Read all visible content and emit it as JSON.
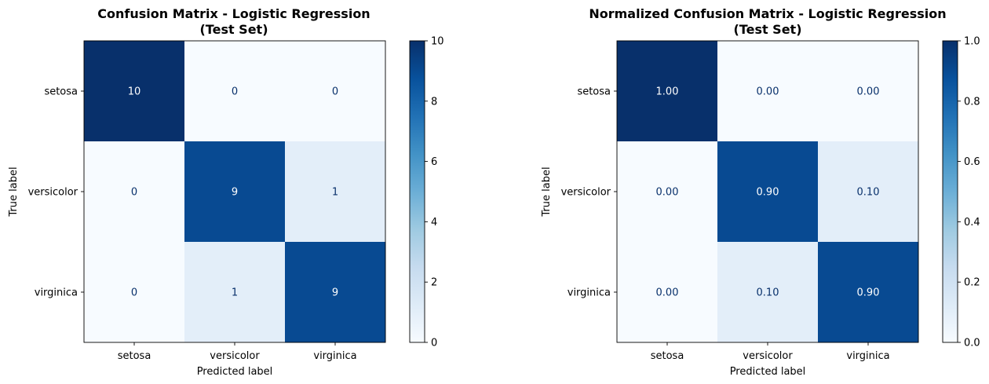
{
  "chart_data": [
    {
      "type": "heatmap",
      "title_lines": [
        "Confusion Matrix - Logistic Regression",
        "(Test Set)"
      ],
      "xlabel": "Predicted label",
      "ylabel": "True label",
      "categories_x": [
        "setosa",
        "versicolor",
        "virginica"
      ],
      "categories_y": [
        "setosa",
        "versicolor",
        "virginica"
      ],
      "values": [
        [
          10,
          0,
          0
        ],
        [
          0,
          9,
          1
        ],
        [
          0,
          1,
          9
        ]
      ],
      "cell_labels": [
        [
          "10",
          "0",
          "0"
        ],
        [
          "0",
          "9",
          "1"
        ],
        [
          "0",
          "1",
          "9"
        ]
      ],
      "vmin": 0,
      "vmax": 10,
      "colorbar_ticks": [
        0,
        2,
        4,
        6,
        8,
        10
      ],
      "colorbar_tick_labels": [
        "0",
        "2",
        "4",
        "6",
        "8",
        "10"
      ],
      "colormap": "Blues"
    },
    {
      "type": "heatmap",
      "title_lines": [
        "Normalized Confusion Matrix - Logistic Regression",
        "(Test Set)"
      ],
      "xlabel": "Predicted label",
      "ylabel": "True label",
      "categories_x": [
        "setosa",
        "versicolor",
        "virginica"
      ],
      "categories_y": [
        "setosa",
        "versicolor",
        "virginica"
      ],
      "values": [
        [
          1.0,
          0.0,
          0.0
        ],
        [
          0.0,
          0.9,
          0.1
        ],
        [
          0.0,
          0.1,
          0.9
        ]
      ],
      "cell_labels": [
        [
          "1.00",
          "0.00",
          "0.00"
        ],
        [
          "0.00",
          "0.90",
          "0.10"
        ],
        [
          "0.00",
          "0.10",
          "0.90"
        ]
      ],
      "vmin": 0,
      "vmax": 1,
      "colorbar_ticks": [
        0,
        0.2,
        0.4,
        0.6,
        0.8,
        1.0
      ],
      "colorbar_tick_labels": [
        "0.0",
        "0.2",
        "0.4",
        "0.6",
        "0.8",
        "1.0"
      ],
      "colormap": "Blues"
    }
  ],
  "colors": {
    "cmap_stops": [
      "#f7fbff",
      "#deebf7",
      "#c6dbef",
      "#9ecae1",
      "#6baed6",
      "#4292c6",
      "#2171b5",
      "#08519c",
      "#08306b"
    ],
    "text_dark": "#08306b",
    "text_light": "#ffffff",
    "axis": "#000000"
  }
}
